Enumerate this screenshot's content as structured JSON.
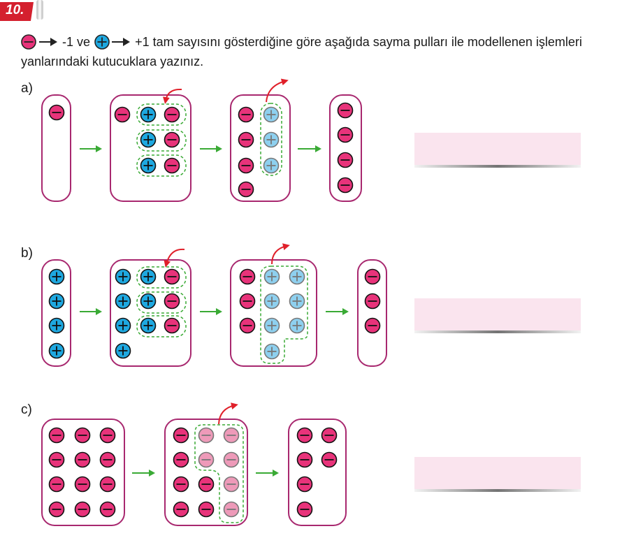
{
  "question": {
    "number": "10.",
    "text_neg": "-1 ve",
    "text_pos": "+1 tam sayısını gösterdiğine göre aşağıda sayma pulları ile modellenen işlemleri yanlarındaki kutucuklara yazınız."
  },
  "parts": [
    {
      "label": "a)",
      "answer": ""
    },
    {
      "label": "b)",
      "answer": ""
    },
    {
      "label": "c)",
      "answer": ""
    }
  ],
  "colors": {
    "negative_chip": "#e8337a",
    "positive_chip": "#1ea8e0",
    "removed_negative_chip": "#ee9ab9",
    "removed_positive_chip": "#8ed0ef",
    "box_border": "#a8286f",
    "arrow": "#3aaa35",
    "removal_arrow": "#e0202a",
    "group_dash": "#3aaa35",
    "badge": "#d4202e",
    "answer_box": "#fae4ee"
  },
  "legend_icons": [
    "minus-chip-icon",
    "plus-chip-icon"
  ]
}
